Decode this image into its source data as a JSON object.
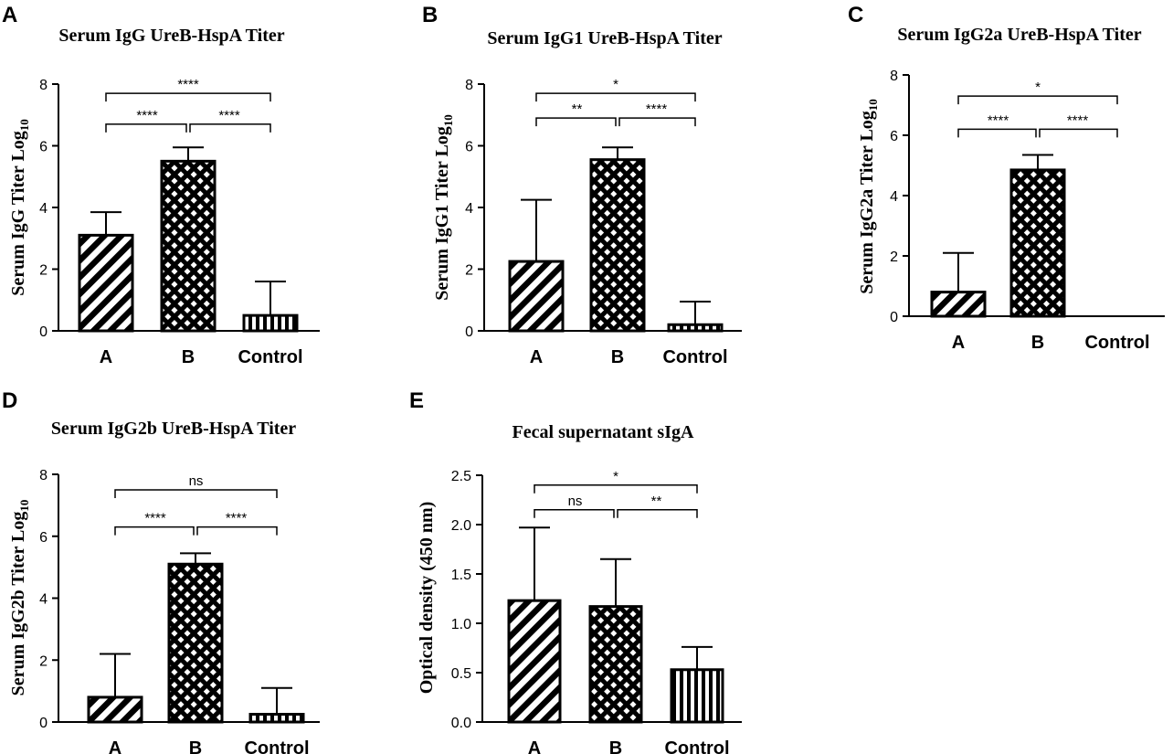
{
  "colors": {
    "ink": "#000000",
    "background": "#ffffff"
  },
  "chart_data": [
    {
      "panel": "A",
      "type": "bar",
      "title": "Serum IgG UreB-HspA Titer",
      "ylabel_main": "Serum IgG Titer Log",
      "ylabel_sub": "10",
      "ylim": [
        0,
        8
      ],
      "yticks": [
        0,
        2,
        4,
        6,
        8
      ],
      "categories": [
        "A",
        "B",
        "Control"
      ],
      "values": [
        3.1,
        5.5,
        0.5
      ],
      "errors": [
        0.75,
        0.45,
        1.1
      ],
      "patterns": [
        "diagonal",
        "checker",
        "vertical"
      ],
      "significance": [
        {
          "from": 0,
          "to": 2,
          "label": "****",
          "y": 7.7
        },
        {
          "from": 0,
          "to": 1,
          "label": "****",
          "y": 6.7,
          "split": true
        },
        {
          "from": 1,
          "to": 2,
          "label": "****",
          "y": 6.7,
          "split": true
        }
      ]
    },
    {
      "panel": "B",
      "type": "bar",
      "title": "Serum IgG1 UreB-HspA Titer",
      "ylabel_main": "Serum IgG1 Titer Log",
      "ylabel_sub": "10",
      "ylim": [
        0,
        8
      ],
      "yticks": [
        0,
        2,
        4,
        6,
        8
      ],
      "categories": [
        "A",
        "B",
        "Control"
      ],
      "values": [
        2.25,
        5.55,
        0.2
      ],
      "errors": [
        2.0,
        0.4,
        0.75
      ],
      "patterns": [
        "diagonal",
        "checker",
        "vertical"
      ],
      "significance": [
        {
          "from": 0,
          "to": 2,
          "label": "*",
          "y": 7.7
        },
        {
          "from": 0,
          "to": 1,
          "label": "**",
          "y": 6.9,
          "split": true
        },
        {
          "from": 1,
          "to": 2,
          "label": "****",
          "y": 6.9,
          "split": true
        }
      ]
    },
    {
      "panel": "C",
      "type": "bar",
      "title": "Serum IgG2a UreB-HspA Titer",
      "ylabel_main": "Serum IgG2a Titer Log",
      "ylabel_sub": "10",
      "ylim": [
        0,
        8
      ],
      "yticks": [
        0,
        2,
        4,
        6,
        8
      ],
      "categories": [
        "A",
        "B",
        "Control"
      ],
      "values": [
        0.8,
        4.85,
        0
      ],
      "errors": [
        1.3,
        0.5,
        0
      ],
      "patterns": [
        "diagonal",
        "checker",
        "vertical"
      ],
      "significance": [
        {
          "from": 0,
          "to": 2,
          "label": "*",
          "y": 7.3
        },
        {
          "from": 0,
          "to": 1,
          "label": "****",
          "y": 6.2,
          "split": true
        },
        {
          "from": 1,
          "to": 2,
          "label": "****",
          "y": 6.2,
          "split": true
        }
      ]
    },
    {
      "panel": "D",
      "type": "bar",
      "title": "Serum IgG2b UreB-HspA Titer",
      "ylabel_main": "Serum IgG2b Titer Log",
      "ylabel_sub": "10",
      "ylim": [
        0,
        8
      ],
      "yticks": [
        0,
        2,
        4,
        6,
        8
      ],
      "categories": [
        "A",
        "B",
        "Control"
      ],
      "values": [
        0.8,
        5.1,
        0.25
      ],
      "errors": [
        1.4,
        0.35,
        0.85
      ],
      "patterns": [
        "diagonal",
        "checker",
        "vertical"
      ],
      "significance": [
        {
          "from": 0,
          "to": 2,
          "label": "ns",
          "y": 7.5
        },
        {
          "from": 0,
          "to": 1,
          "label": "****",
          "y": 6.3,
          "split": true
        },
        {
          "from": 1,
          "to": 2,
          "label": "****",
          "y": 6.3,
          "split": true
        }
      ]
    },
    {
      "panel": "E",
      "type": "bar",
      "title": "Fecal supernatant sIgA",
      "ylabel_main": "Optical density (450 nm)",
      "ylabel_sub": "",
      "ylim": [
        0,
        2.5
      ],
      "yticks": [
        0.0,
        0.5,
        1.0,
        1.5,
        2.0,
        2.5
      ],
      "ytick_labels": [
        "0.0",
        "0.5",
        "1.0",
        "1.5",
        "2.0",
        "2.5"
      ],
      "categories": [
        "A",
        "B",
        "Control"
      ],
      "values": [
        1.23,
        1.17,
        0.53
      ],
      "errors": [
        0.74,
        0.48,
        0.23
      ],
      "patterns": [
        "diagonal",
        "checker",
        "vertical"
      ],
      "significance": [
        {
          "from": 0,
          "to": 2,
          "label": "*",
          "y": 2.4
        },
        {
          "from": 0,
          "to": 1,
          "label": "ns",
          "y": 2.15,
          "split": true
        },
        {
          "from": 1,
          "to": 2,
          "label": "**",
          "y": 2.15,
          "split": true
        }
      ]
    }
  ]
}
